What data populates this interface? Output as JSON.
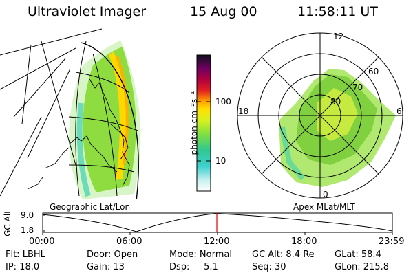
{
  "header": {
    "instrument": "Ultraviolet Imager",
    "date": "15 Aug 00",
    "time": "11:58:11 UT"
  },
  "geo_panel": {
    "label": "Geographic Lat/Lon"
  },
  "polar_panel": {
    "label": "Apex MLat/MLT",
    "mlt_labels": {
      "top": "12",
      "left": "18",
      "right": "6",
      "bottom": "0"
    },
    "lat_labels": [
      "60",
      "70",
      "80"
    ]
  },
  "colorbar": {
    "unit_label": "photon cm⁻²s⁻¹",
    "ticks": [
      "100",
      "10"
    ]
  },
  "altitude_plot": {
    "y_label": "GC Alt",
    "y_ticks": [
      "9.0",
      "1.8"
    ],
    "x_ticks": [
      "00:00",
      "06:00",
      "12:00",
      "18:00",
      "23:59"
    ],
    "marker_color": "#e00000"
  },
  "info": {
    "filter": "Flt: LBHL",
    "door": "Door: Open",
    "mode": "Mode: Normal",
    "gc_alt": "GC Alt: 8.4 Re",
    "glat": "GLat:  58.4",
    "ip": "IP: 18.0",
    "gain": "Gain: 13",
    "dsp": "Dsp:     5.1",
    "seq": "Seq: 30",
    "glon": "GLon: 215.8"
  }
}
